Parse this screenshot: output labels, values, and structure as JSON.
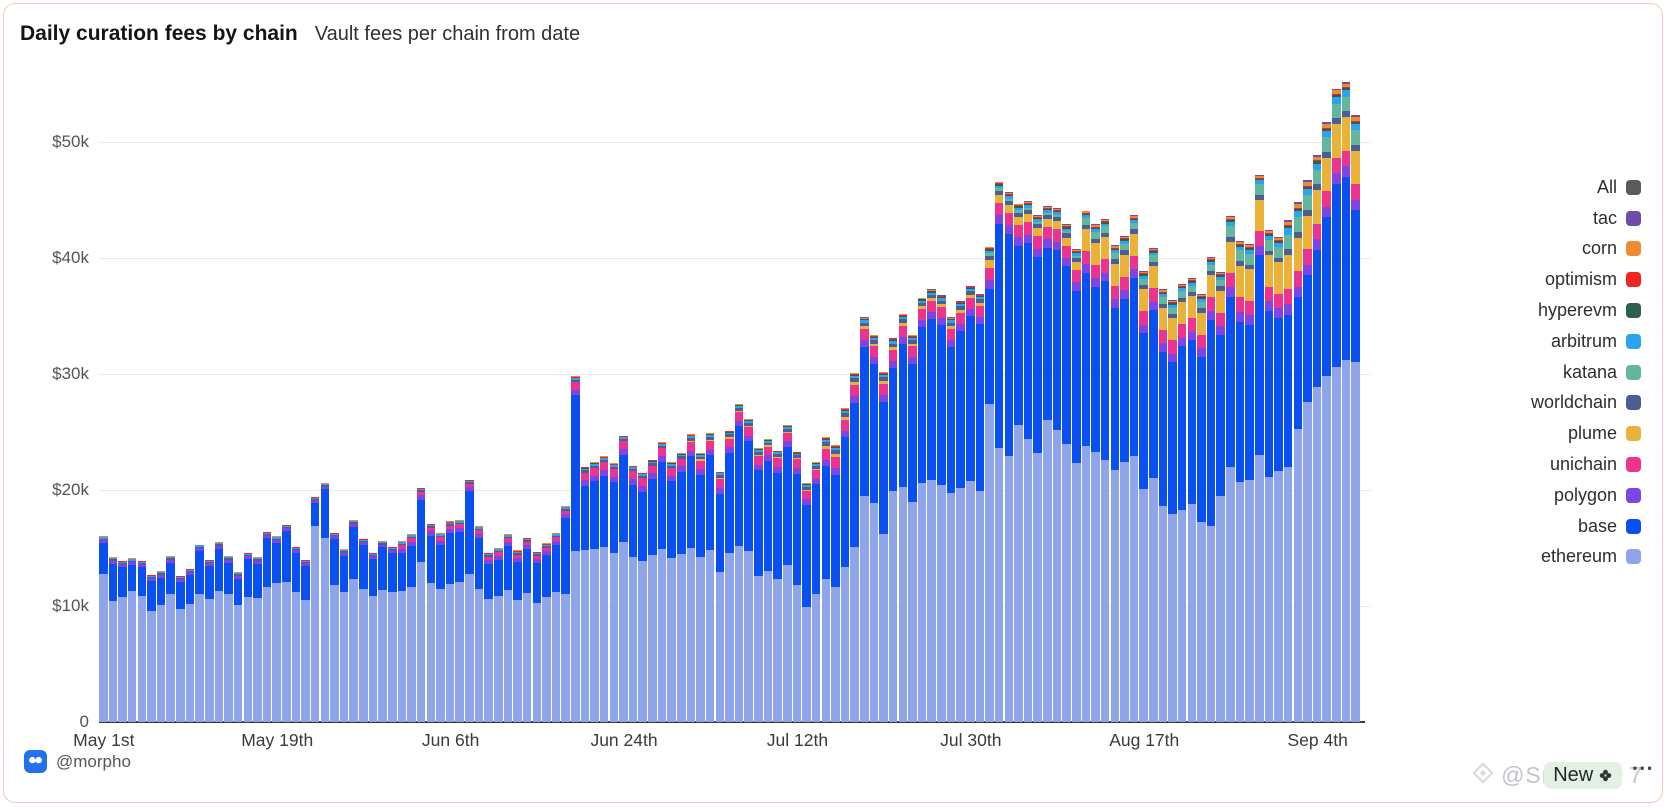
{
  "header": {
    "title": "Daily curation fees by chain",
    "subtitle": "Vault fees per chain from date"
  },
  "footer": {
    "handle": "@morpho"
  },
  "watermark": {
    "dots": "⋯",
    "handle": "@Snipez-0",
    "badge_label": "New",
    "suffix": "7"
  },
  "legend": {
    "items": [
      {
        "label": "All",
        "color": "#5A5A5A"
      },
      {
        "label": "tac",
        "color": "#6F4CA8"
      },
      {
        "label": "corn",
        "color": "#EE8A2F"
      },
      {
        "label": "optimism",
        "color": "#F02521"
      },
      {
        "label": "hyperevm",
        "color": "#2F5F52"
      },
      {
        "label": "arbitrum",
        "color": "#2BA3EF"
      },
      {
        "label": "katana",
        "color": "#62B79E"
      },
      {
        "label": "worldchain",
        "color": "#4D5E96"
      },
      {
        "label": "plume",
        "color": "#EBB239"
      },
      {
        "label": "unichain",
        "color": "#EC3390"
      },
      {
        "label": "polygon",
        "color": "#7F45E4"
      },
      {
        "label": "base",
        "color": "#0A50F0"
      },
      {
        "label": "ethereum",
        "color": "#8EA6E9"
      }
    ]
  },
  "chart_data": {
    "type": "bar",
    "stacked": true,
    "title": "Daily curation fees by chain",
    "subtitle": "Vault fees per chain from date",
    "unit": "USD thousands per day",
    "num_bars": 131,
    "date_range": "May 1 to Sep 8",
    "ylim": [
      0,
      55.9
    ],
    "grid": "horizontal",
    "legend_position": "right",
    "y_ticks": [
      {
        "value": 0,
        "label": "0"
      },
      {
        "value": 10,
        "label": "$10k"
      },
      {
        "value": 20,
        "label": "$20k"
      },
      {
        "value": 30,
        "label": "$30k"
      },
      {
        "value": 40,
        "label": "$40k"
      },
      {
        "value": 50,
        "label": "$50k"
      }
    ],
    "x_ticks": [
      {
        "day": 0,
        "label": "May 1st"
      },
      {
        "day": 18,
        "label": "May 19th"
      },
      {
        "day": 36,
        "label": "Jun 6th"
      },
      {
        "day": 54,
        "label": "Jun 24th"
      },
      {
        "day": 72,
        "label": "Jul 12th"
      },
      {
        "day": 90,
        "label": "Jul 30th"
      },
      {
        "day": 108,
        "label": "Aug 17th"
      },
      {
        "day": 126,
        "label": "Sep 4th"
      }
    ],
    "series": [
      {
        "name": "ethereum",
        "color": "#8EA6E9",
        "values": [
          12.8,
          10.4,
          10.8,
          11.3,
          10.9,
          9.6,
          10.1,
          11.0,
          9.7,
          10.2,
          11.0,
          10.6,
          11.3,
          11.0,
          10.1,
          10.8,
          10.7,
          11.6,
          12.0,
          12.1,
          11.2,
          10.5,
          16.9,
          15.9,
          11.8,
          11.2,
          12.3,
          11.5,
          10.9,
          11.4,
          11.2,
          11.3,
          11.6,
          13.8,
          12.0,
          11.5,
          11.9,
          12.1,
          12.8,
          11.5,
          10.6,
          10.9,
          11.4,
          10.5,
          11.1,
          10.3,
          10.8,
          11.2,
          11.0,
          14.7,
          14.8,
          14.9,
          15.1,
          14.6,
          15.5,
          14.2,
          13.9,
          14.4,
          14.9,
          14.1,
          14.5,
          15.0,
          14.2,
          14.8,
          12.9,
          14.6,
          15.2,
          14.7,
          12.6,
          13.0,
          12.3,
          13.5,
          11.8,
          9.9,
          11.0,
          12.3,
          11.6,
          13.4,
          15.1,
          19.5,
          18.9,
          16.2,
          19.9,
          20.3,
          19.0,
          20.6,
          20.9,
          20.4,
          19.7,
          20.2,
          20.8,
          19.9,
          27.4,
          23.6,
          22.9,
          25.6,
          24.4,
          23.2,
          26.0,
          25.2,
          24.0,
          22.3,
          23.8,
          23.3,
          22.6,
          21.7,
          22.4,
          22.9,
          20.1,
          21.0,
          18.6,
          17.9,
          18.3,
          18.8,
          17.2,
          16.9,
          19.5,
          22.0,
          20.7,
          20.9,
          23.0,
          21.1,
          21.6,
          22.0,
          25.3,
          27.6,
          28.9,
          29.8,
          30.6,
          31.2,
          31.0
        ]
      },
      {
        "name": "base",
        "color": "#0A50F0",
        "values": [
          2.65,
          3.25,
          2.55,
          2.25,
          2.45,
          2.55,
          2.35,
          2.75,
          2.35,
          2.45,
          3.75,
          2.85,
          3.65,
          2.75,
          2.25,
          3.25,
          2.95,
          4.25,
          3.45,
          4.35,
          3.35,
          2.95,
          1.95,
          4.15,
          3.95,
          3.15,
          4.55,
          3.75,
          3.15,
          3.65,
          3.35,
          3.28,
          3.58,
          5.38,
          4.08,
          3.78,
          4.38,
          4.28,
          7.08,
          4.38,
          2.98,
          3.08,
          3.78,
          3.28,
          3.78,
          3.38,
          3.58,
          4.08,
          6.58,
          13.45,
          5.55,
          5.85,
          6.15,
          6.05,
          7.55,
          6.25,
          5.95,
          6.55,
          7.55,
          6.65,
          7.05,
          7.89,
          7.09,
          8.19,
          6.79,
          8.59,
          10.29,
          9.49,
          9.09,
          9.49,
          9.19,
          10.19,
          9.59,
          8.79,
          9.49,
          9.73,
          9.73,
          11.13,
          12.43,
          12.83,
          11.93,
          11.43,
          10.63,
          12.33,
          11.83,
          13.43,
          13.83,
          13.83,
          12.63,
          13.53,
          14.23,
          14.43,
          9.97,
          19.37,
          19.17,
          15.47,
          16.87,
          16.87,
          14.87,
          15.47,
          15.27,
          14.87,
          14.9,
          14.2,
          15.4,
          14.0,
          14.1,
          15.4,
          13.4,
          14.5,
          13.3,
          13.1,
          14.1,
          14.1,
          14.3,
          17.8,
          13.9,
          14.62,
          13.82,
          13.32,
          17.22,
          14.32,
          13.22,
          13.1,
          11.3,
          10.9,
          11.8,
          13.7,
          15.8,
          15.8,
          13.1
        ]
      },
      {
        "name": "polygon",
        "color": "#7F45E4",
        "runs": [
          [
            0.25,
            31
          ],
          [
            0.35,
            18
          ],
          [
            0.5,
            26
          ],
          [
            0.6,
            17
          ],
          [
            0.75,
            25
          ],
          [
            0.85,
            6
          ],
          [
            0.9,
            8
          ]
        ]
      },
      {
        "name": "unichain",
        "color": "#EC3390",
        "runs": [
          [
            0,
            31
          ],
          [
            0.3,
            18
          ],
          [
            0.65,
            12
          ],
          [
            0.75,
            14
          ],
          [
            0.95,
            17
          ],
          [
            1.05,
            10
          ],
          [
            1.15,
            15
          ],
          [
            1.25,
            6
          ],
          [
            1.35,
            8
          ]
        ]
      },
      {
        "name": "plume",
        "color": "#EBB239",
        "runs": [
          [
            0,
            61
          ],
          [
            0.1,
            14
          ],
          [
            0.25,
            17
          ],
          [
            0.7,
            10
          ],
          [
            1.9,
            15
          ],
          [
            2.7,
            6
          ],
          [
            2.9,
            8
          ]
        ]
      },
      {
        "name": "worldchain",
        "color": "#4D5E96",
        "runs": [
          [
            0.12,
            31
          ],
          [
            0.15,
            18
          ],
          [
            0.2,
            12
          ],
          [
            0.25,
            14
          ],
          [
            0.3,
            17
          ],
          [
            0.35,
            10
          ],
          [
            0.38,
            15
          ],
          [
            0.42,
            6
          ],
          [
            0.5,
            8
          ]
        ]
      },
      {
        "name": "katana",
        "color": "#62B79E",
        "runs": [
          [
            0,
            92
          ],
          [
            0.2,
            10
          ],
          [
            0.55,
            15
          ],
          [
            0.95,
            6
          ],
          [
            1.25,
            8
          ]
        ]
      },
      {
        "name": "arbitrum",
        "color": "#2BA3EF",
        "runs": [
          [
            0.1,
            31
          ],
          [
            0.12,
            18
          ],
          [
            0.15,
            26
          ],
          [
            0.2,
            17
          ],
          [
            0.22,
            10
          ],
          [
            0.25,
            15
          ],
          [
            0.3,
            6
          ],
          [
            0.55,
            8
          ]
        ]
      },
      {
        "name": "hyperevm",
        "color": "#2F5F52",
        "runs": [
          [
            0,
            49
          ],
          [
            0.05,
            12
          ],
          [
            0.06,
            14
          ],
          [
            0.1,
            17
          ],
          [
            0.12,
            10
          ],
          [
            0.13,
            15
          ],
          [
            0.15,
            6
          ],
          [
            0.2,
            8
          ]
        ]
      },
      {
        "name": "optimism",
        "color": "#F02521",
        "runs": [
          [
            0.04,
            31
          ],
          [
            0.05,
            44
          ],
          [
            0.06,
            17
          ],
          [
            0.08,
            25
          ],
          [
            0.1,
            14
          ]
        ]
      },
      {
        "name": "corn",
        "color": "#EE8A2F",
        "runs": [
          [
            0.04,
            31
          ],
          [
            0.05,
            44
          ],
          [
            0.06,
            17
          ],
          [
            0.1,
            10
          ],
          [
            0.13,
            15
          ],
          [
            0.16,
            6
          ],
          [
            0.3,
            8
          ]
        ]
      },
      {
        "name": "tac",
        "color": "#6F4CA8",
        "runs": [
          [
            0,
            75
          ],
          [
            0.05,
            17
          ],
          [
            0.06,
            10
          ],
          [
            0.08,
            15
          ],
          [
            0.1,
            6
          ],
          [
            0.15,
            8
          ]
        ]
      }
    ]
  }
}
